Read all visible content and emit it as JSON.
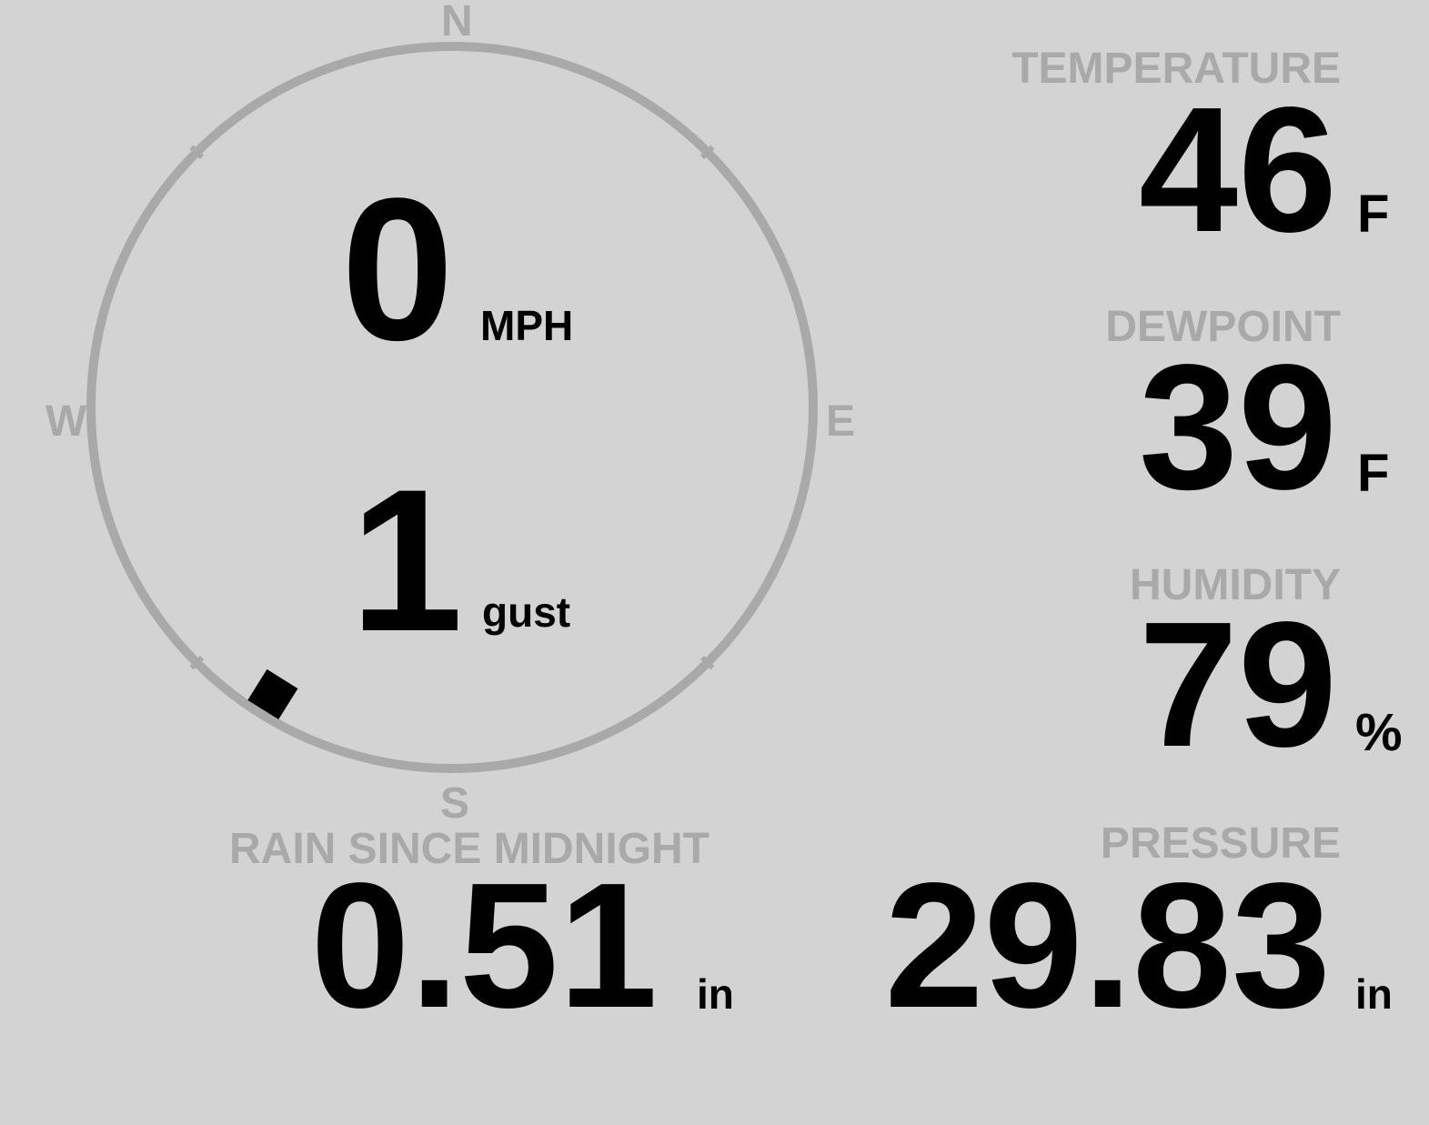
{
  "wind": {
    "speed": "0",
    "speed_unit": "MPH",
    "gust": "1",
    "gust_label": "gust",
    "direction_degrees": 212,
    "compass": {
      "n": "N",
      "e": "E",
      "s": "S",
      "w": "W"
    }
  },
  "temperature": {
    "label": "TEMPERATURE",
    "value": "46",
    "unit": "F"
  },
  "dewpoint": {
    "label": "DEWPOINT",
    "value": "39",
    "unit": "F"
  },
  "humidity": {
    "label": "HUMIDITY",
    "value": "79",
    "unit": "%"
  },
  "rain": {
    "label": "RAIN SINCE MIDNIGHT",
    "value": "0.51",
    "unit": "in"
  },
  "pressure": {
    "label": "PRESSURE",
    "value": "29.83",
    "unit": "in"
  },
  "colors": {
    "background": "#d3d3d3",
    "ring": "#a9a9a9",
    "label": "#a9a9a9",
    "value": "#000000"
  }
}
